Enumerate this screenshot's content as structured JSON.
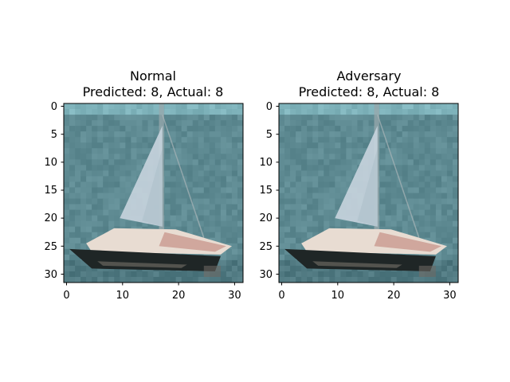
{
  "panels": [
    {
      "title": "Normal",
      "subtitle": "Predicted: 8, Actual: 8",
      "xticks": [
        "0",
        "10",
        "20",
        "30"
      ],
      "yticks": [
        "0",
        "5",
        "10",
        "15",
        "20",
        "25",
        "30"
      ]
    },
    {
      "title": "Adversary",
      "subtitle": "Predicted: 8, Actual: 8",
      "xticks": [
        "0",
        "10",
        "20",
        "30"
      ],
      "yticks": [
        "0",
        "5",
        "10",
        "15",
        "20",
        "25",
        "30"
      ]
    }
  ],
  "image": {
    "subject": "sailboat-on-water",
    "colors": {
      "water": "#5e8a92",
      "water_dark": "#4f7880",
      "sky_band": "#7fb3bb",
      "sail": "#c6d2dc",
      "sail_shade": "#aebfca",
      "hull_white": "#e8dcd2",
      "hull_pink": "#c99a90",
      "hull_dark": "#1f2626",
      "hull_mid": "#6a6660"
    }
  }
}
